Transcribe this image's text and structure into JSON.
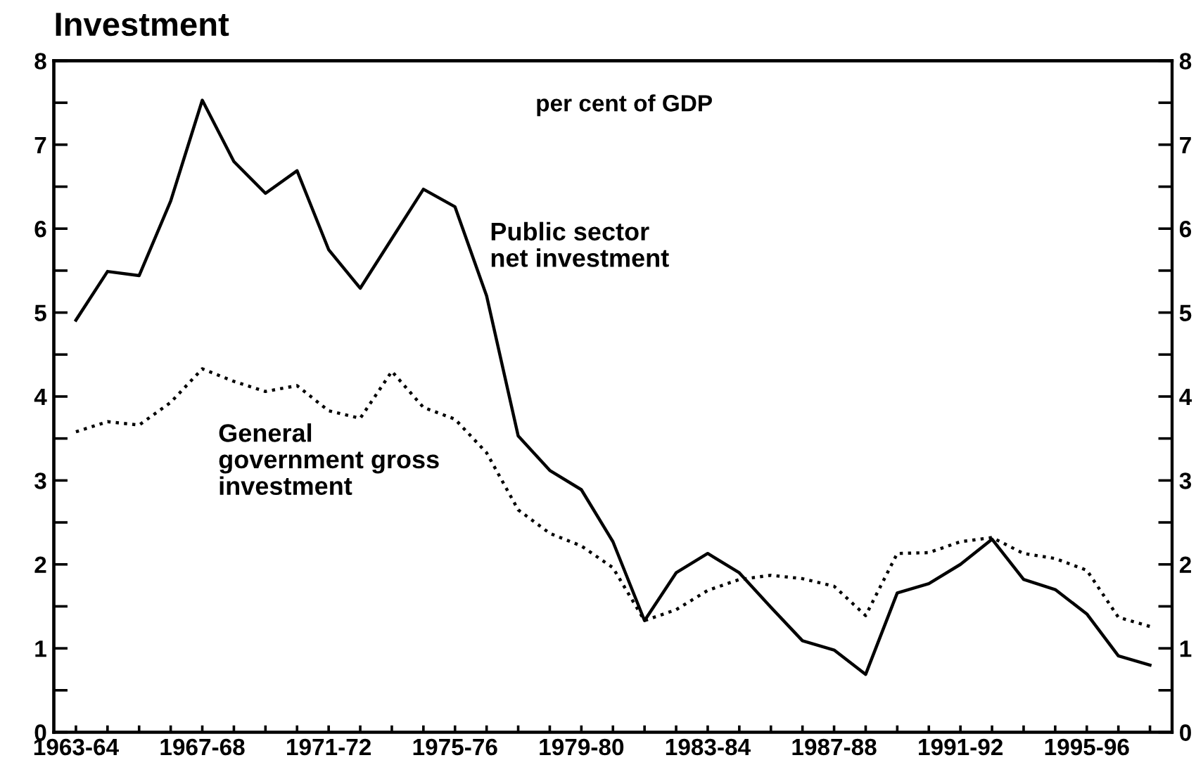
{
  "chart_data": {
    "type": "line",
    "title": "Investment",
    "annotations": [
      "per cent of GDP"
    ],
    "categories": [
      "1963-64",
      null,
      null,
      null,
      "1967-68",
      null,
      null,
      null,
      "1971-72",
      null,
      null,
      null,
      "1975-76",
      null,
      null,
      null,
      "1979-80",
      null,
      null,
      null,
      "1983-84",
      null,
      null,
      null,
      "1987-88",
      null,
      null,
      null,
      "1991-92",
      null,
      null,
      null,
      "1995-96",
      null,
      null
    ],
    "series": [
      {
        "name": "Public sector\nnet investment",
        "color": "#000000",
        "line_style": "solid",
        "values": [
          4.91,
          5.49,
          5.44,
          6.33,
          7.53,
          6.8,
          6.42,
          6.69,
          5.75,
          5.29,
          5.88,
          6.47,
          6.26,
          5.2,
          3.53,
          3.12,
          2.89,
          2.27,
          1.33,
          1.9,
          2.13,
          1.9,
          1.49,
          1.09,
          0.98,
          0.69,
          1.66,
          1.77,
          2.0,
          2.3,
          1.82,
          1.7,
          1.41,
          0.91,
          0.8
        ]
      },
      {
        "name": "General\ngovernment gross\ninvestment",
        "color": "#000000",
        "line_style": "dotted",
        "values": [
          3.58,
          3.7,
          3.66,
          3.93,
          4.33,
          4.18,
          4.06,
          4.13,
          3.83,
          3.74,
          4.3,
          3.87,
          3.73,
          3.33,
          2.65,
          2.37,
          2.22,
          1.96,
          1.33,
          1.46,
          1.69,
          1.82,
          1.87,
          1.83,
          1.74,
          1.39,
          2.13,
          2.14,
          2.27,
          2.32,
          2.13,
          2.07,
          1.93,
          1.37,
          1.26
        ]
      }
    ],
    "ylim": [
      0,
      8
    ],
    "yticks": [
      0,
      {
        "value": 0.5,
        "label": null
      },
      1,
      {
        "value": 1.5,
        "label": null
      },
      2,
      {
        "value": 2.5,
        "label": null
      },
      3,
      {
        "value": 3.5,
        "label": null
      },
      4,
      {
        "value": 4.5,
        "label": null
      },
      5,
      {
        "value": 5.5,
        "label": null
      },
      6,
      {
        "value": 6.5,
        "label": null
      },
      7,
      {
        "value": 7.5,
        "label": null
      },
      8
    ],
    "y2lim": [
      0,
      8
    ],
    "y2ticks": [
      0,
      {
        "value": 0.5,
        "label": null
      },
      1,
      {
        "value": 1.5,
        "label": null
      },
      2,
      {
        "value": 2.5,
        "label": null
      },
      3,
      {
        "value": 3.5,
        "label": null
      },
      4,
      {
        "value": 4.5,
        "label": null
      },
      5,
      {
        "value": 5.5,
        "label": null
      },
      6,
      {
        "value": 6.5,
        "label": null
      },
      7,
      {
        "value": 7.5,
        "label": null
      },
      8
    ],
    "grid": false,
    "legend": false
  }
}
